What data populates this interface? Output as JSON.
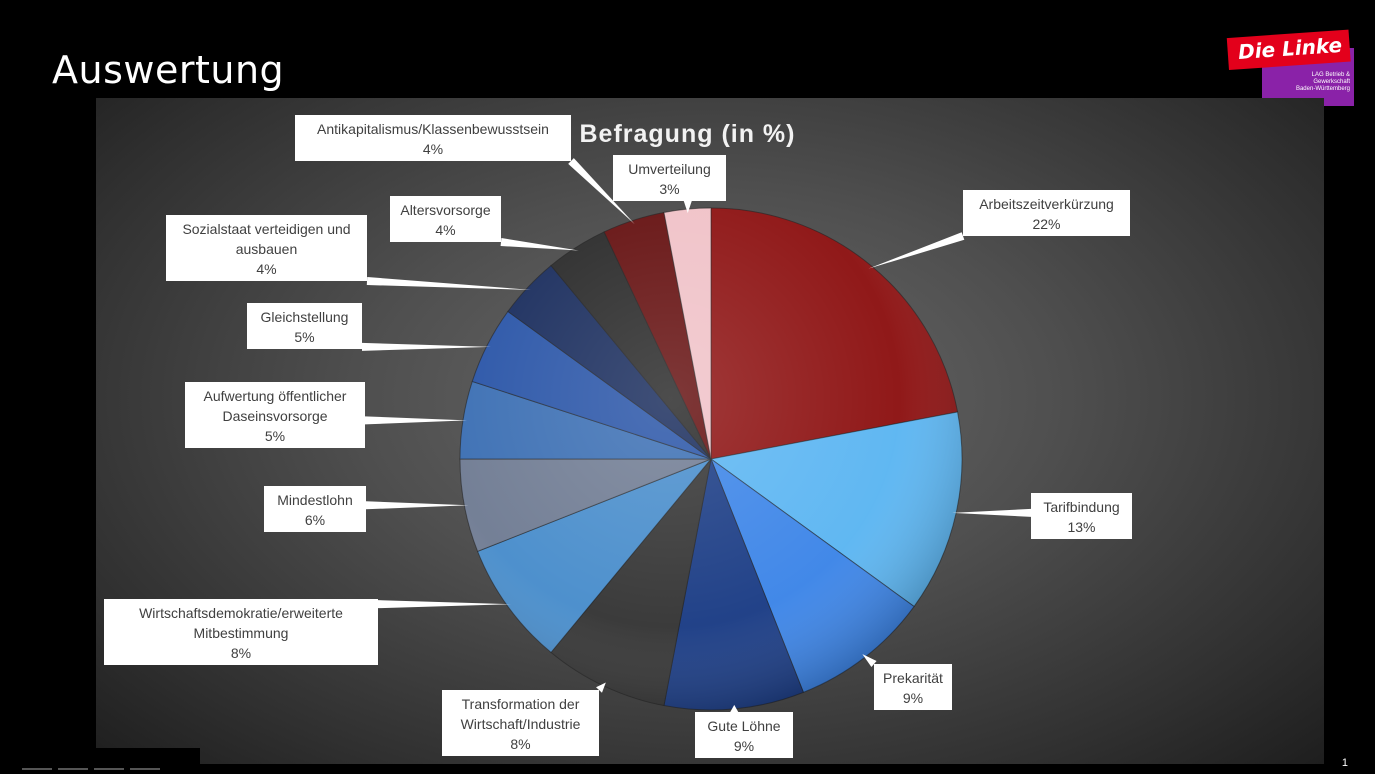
{
  "slide": {
    "title": "Auswertung",
    "page_number": "1"
  },
  "logo": {
    "name": "Die Linke",
    "sub_lines": [
      "LAG Betrieb &",
      "Gewerkschaft",
      "Baden-Württemberg"
    ],
    "colors": {
      "red": "#e3001b",
      "purple": "#8a22a8"
    }
  },
  "chart_data": {
    "type": "pie",
    "title": "Befragung (in %)",
    "categories": [
      "Arbeitszeitverkürzung",
      "Tarifbindung",
      "Prekarität",
      "Gute Löhne",
      "Transformation der Wirtschaft/Industrie",
      "Wirtschaftsdemokratie/erweiterte Mitbestimmung",
      "Mindestlohn",
      "Aufwertung öffentlicher Daseinsvorsorge",
      "Gleichstellung",
      "Sozialstaat verteidigen und ausbauen",
      "Altersvorsorge",
      "Antikapitalismus/Klassenbewusstsein",
      "Umverteilung"
    ],
    "values": [
      22,
      13,
      9,
      9,
      8,
      8,
      6,
      5,
      5,
      4,
      4,
      4,
      3
    ],
    "value_labels": [
      "22%",
      "13%",
      "9%",
      "9%",
      "8%",
      "8%",
      "6%",
      "5%",
      "5%",
      "4%",
      "4%",
      "4%",
      "3%"
    ],
    "label_lines": [
      [
        "Arbeitszeitverkürzung"
      ],
      [
        "Tarifbindung"
      ],
      [
        "Prekarität"
      ],
      [
        "Gute Löhne"
      ],
      [
        "Transformation der",
        "Wirtschaft/Industrie"
      ],
      [
        "Wirtschaftsdemokratie/erweiterte",
        "Mitbestimmung"
      ],
      [
        "Mindestlohn"
      ],
      [
        "Aufwertung öffentlicher",
        "Daseinsvorsorge"
      ],
      [
        "Gleichstellung"
      ],
      [
        "Sozialstaat verteidigen und",
        "ausbauen"
      ],
      [
        "Altersvorsorge"
      ],
      [
        "Antikapitalismus/Klassenbewusstsein"
      ],
      [
        "Umverteilung"
      ]
    ],
    "colors": [
      "#8e1414",
      "#5db6f2",
      "#3e86e8",
      "#1d3e86",
      "#373737",
      "#4a8ecc",
      "#717d94",
      "#3d70b4",
      "#2b56a8",
      "#1b2e5e",
      "#2b2b2b",
      "#661212",
      "#f0c2c8"
    ],
    "start_angle": "12 o'clock",
    "direction": "clockwise",
    "legend": "none",
    "data_labels": "callout boxes with leader lines"
  }
}
